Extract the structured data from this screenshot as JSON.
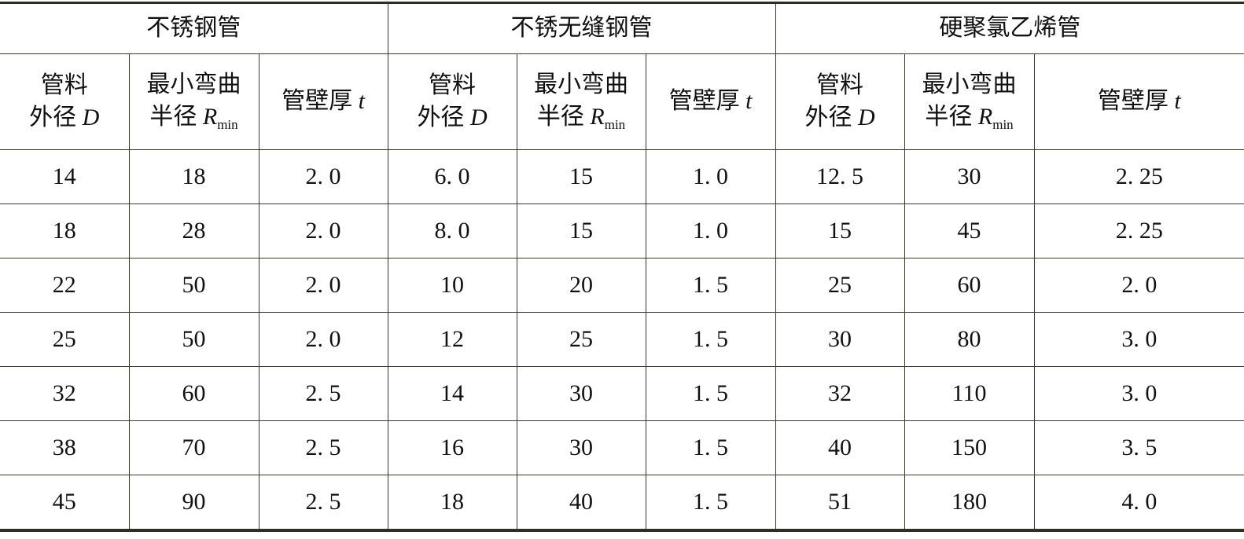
{
  "groups": [
    "不锈钢管",
    "不锈无缝钢管",
    "硬聚氯乙烯管"
  ],
  "subheaders": {
    "diameter_line1": "管料",
    "diameter_line2": "外径",
    "diameter_var": "D",
    "radius_line1": "最小弯曲",
    "radius_line2": "半径",
    "radius_var": "R",
    "radius_sub": "min",
    "thickness": "管壁厚",
    "thickness_var": "t"
  },
  "rows": [
    [
      "14",
      "18",
      "2. 0",
      "6. 0",
      "15",
      "1. 0",
      "12. 5",
      "30",
      "2. 25"
    ],
    [
      "18",
      "28",
      "2. 0",
      "8. 0",
      "15",
      "1. 0",
      "15",
      "45",
      "2. 25"
    ],
    [
      "22",
      "50",
      "2. 0",
      "10",
      "20",
      "1. 5",
      "25",
      "60",
      "2. 0"
    ],
    [
      "25",
      "50",
      "2. 0",
      "12",
      "25",
      "1. 5",
      "30",
      "80",
      "3. 0"
    ],
    [
      "32",
      "60",
      "2. 5",
      "14",
      "30",
      "1. 5",
      "32",
      "110",
      "3. 0"
    ],
    [
      "38",
      "70",
      "2. 5",
      "16",
      "30",
      "1. 5",
      "40",
      "150",
      "3. 5"
    ],
    [
      "45",
      "90",
      "2. 5",
      "18",
      "40",
      "1. 5",
      "51",
      "180",
      "4. 0"
    ]
  ]
}
